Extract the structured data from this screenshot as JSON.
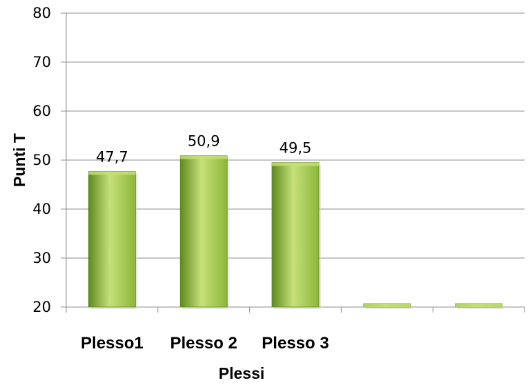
{
  "chart_data": {
    "type": "bar",
    "categories": [
      "Plesso1",
      "Plesso 2",
      "Plesso 3",
      "",
      ""
    ],
    "values": [
      47.7,
      50.9,
      49.5,
      20,
      20
    ],
    "data_labels": [
      "47,7",
      "50,9",
      "49,5",
      "",
      ""
    ],
    "title": "",
    "xlabel": "Plessi",
    "ylabel": "Punti T",
    "ylim": [
      20,
      80
    ],
    "yticks": [
      20,
      30,
      40,
      50,
      60,
      70,
      80
    ],
    "grid": true,
    "legend": "none",
    "bar_color": "#8db63a",
    "bar_color_light": "#c6e07a",
    "bar_color_dark": "#5e8a1e",
    "grid_color": "#8c8c8c"
  }
}
